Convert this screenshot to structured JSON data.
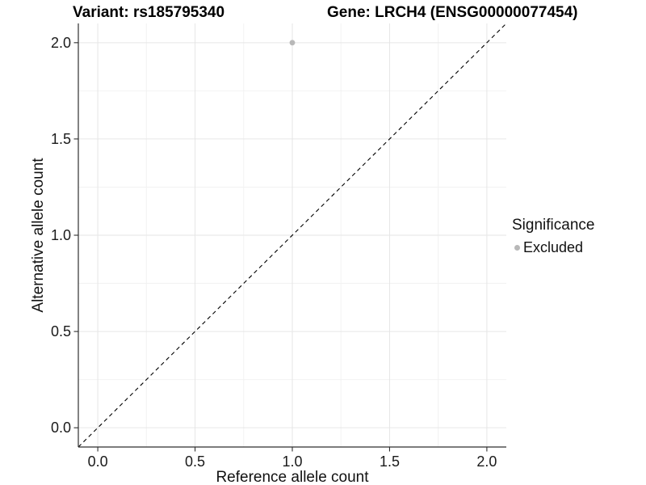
{
  "chart_data": {
    "type": "scatter",
    "titles": {
      "left": "Variant: rs185795340",
      "right": "Gene: LRCH4 (ENSG00000077454)"
    },
    "xlabel": "Reference allele count",
    "ylabel": "Alternative allele count",
    "xlim": [
      -0.1,
      2.1
    ],
    "ylim": [
      -0.1,
      2.1
    ],
    "x_ticks": {
      "values": [
        0,
        0.5,
        1,
        1.5,
        2
      ],
      "labels": [
        "0.0",
        "0.5",
        "1.0",
        "1.5",
        "2.0"
      ]
    },
    "y_ticks": {
      "values": [
        0,
        0.5,
        1,
        1.5,
        2
      ],
      "labels": [
        "0.0",
        "0.5",
        "1.0",
        "1.5",
        "2.0"
      ]
    },
    "x_minor": [
      0.25,
      0.75,
      1.25,
      1.75
    ],
    "y_minor": [
      0.25,
      0.75,
      1.25,
      1.75
    ],
    "grid": true,
    "series": [
      {
        "name": "Excluded",
        "color": "#b8b8b8",
        "points": [
          {
            "x": 1.0,
            "y": 2.0
          }
        ]
      }
    ],
    "reference_line": {
      "slope": 1,
      "intercept": 0,
      "style": "dashed",
      "color": "#000000"
    },
    "legend": {
      "title": "Significance",
      "position": "right",
      "items": [
        {
          "label": "Excluded",
          "color": "#b8b8b8",
          "marker": "circle"
        }
      ]
    },
    "colors": {
      "background": "#ffffff",
      "grid_major": "#e6e6e6",
      "grid_minor": "#f2f2f2",
      "axis": "#2f2f2f",
      "tick_label": "#1a1a1a",
      "point": "#b8b8b8"
    }
  }
}
